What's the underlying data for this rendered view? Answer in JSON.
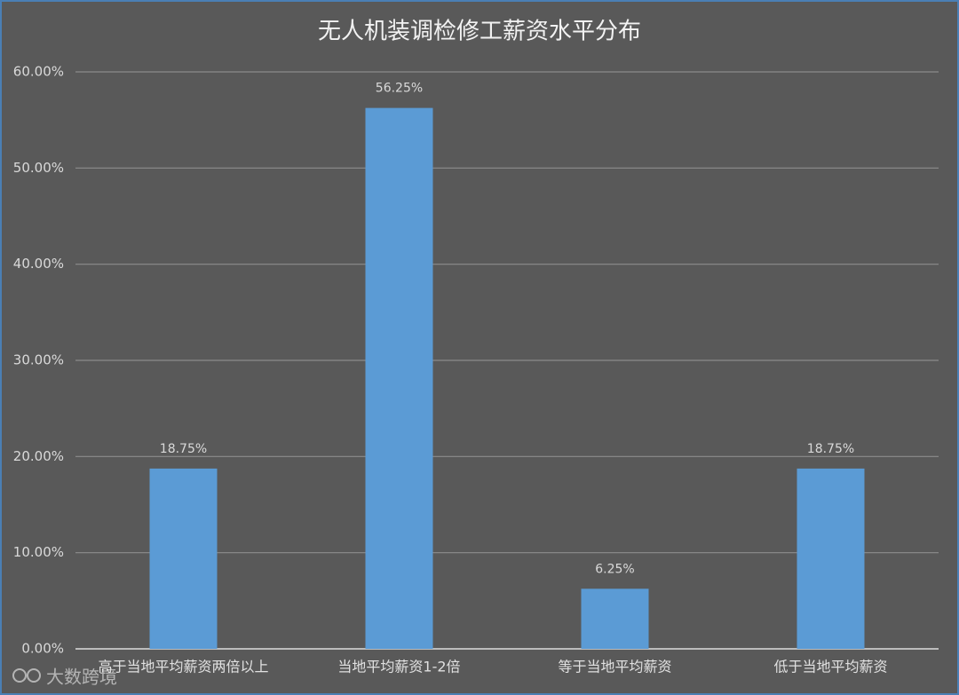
{
  "chart_data": {
    "type": "bar",
    "title": "无人机装调检修工薪资水平分布",
    "categories": [
      "高于当地平均薪资两倍以上",
      "当地平均薪资1-2倍",
      "等于当地平均薪资",
      "低于当地平均薪资"
    ],
    "values": [
      18.75,
      56.25,
      6.25,
      18.75
    ],
    "value_labels": [
      "18.75%",
      "56.25%",
      "6.25%",
      "18.75%"
    ],
    "color": "#5b9bd5",
    "ylim": [
      0,
      60
    ],
    "yticks": [
      {
        "value": 0,
        "label": "0.00%"
      },
      {
        "value": 10,
        "label": "10.00%"
      },
      {
        "value": 20,
        "label": "20.00%"
      },
      {
        "value": 30,
        "label": "30.00%"
      },
      {
        "value": 40,
        "label": "40.00%"
      },
      {
        "value": 50,
        "label": "50.00%"
      },
      {
        "value": 60,
        "label": "60.00%"
      }
    ],
    "grid": true
  },
  "watermark": "大数跨境"
}
